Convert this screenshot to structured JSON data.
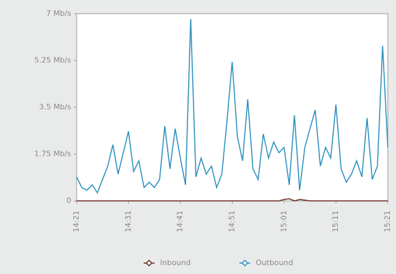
{
  "chart_data": {
    "type": "line",
    "x": [
      861,
      862,
      863,
      864,
      865,
      866,
      867,
      868,
      869,
      870,
      871,
      872,
      873,
      874,
      875,
      876,
      877,
      878,
      879,
      880,
      881,
      882,
      883,
      884,
      885,
      886,
      887,
      888,
      889,
      890,
      891,
      892,
      893,
      894,
      895,
      896,
      897,
      898,
      899,
      900,
      901,
      902,
      903,
      904,
      905,
      906,
      907,
      908,
      909,
      910,
      911,
      912,
      913,
      914,
      915,
      916,
      917,
      918,
      919,
      920,
      921
    ],
    "series": [
      {
        "name": "Inbound",
        "color": "#6b2a1e",
        "values": [
          0,
          0,
          0,
          0,
          0,
          0,
          0,
          0,
          0,
          0,
          0,
          0,
          0,
          0,
          0,
          0,
          0,
          0,
          0,
          0,
          0,
          0,
          0,
          0,
          0,
          0,
          0,
          0,
          0,
          0,
          0,
          0,
          0,
          0,
          0,
          0,
          0,
          0,
          0,
          0,
          0.05,
          0.08,
          0,
          0.05,
          0.03,
          0,
          0,
          0,
          0,
          0,
          0,
          0,
          0,
          0,
          0,
          0,
          0,
          0,
          0,
          0,
          0
        ]
      },
      {
        "name": "Outbound",
        "color": "#2a8fbd",
        "values": [
          0.9,
          0.5,
          0.4,
          0.6,
          0.3,
          0.8,
          1.3,
          2.1,
          1.0,
          1.8,
          2.6,
          1.1,
          1.5,
          0.5,
          0.7,
          0.5,
          0.8,
          2.8,
          1.2,
          2.7,
          1.6,
          0.6,
          6.8,
          0.9,
          1.6,
          1.0,
          1.3,
          0.5,
          1.0,
          3.0,
          5.2,
          2.4,
          1.5,
          3.8,
          1.2,
          0.8,
          2.5,
          1.6,
          2.2,
          1.8,
          2.0,
          0.6,
          3.2,
          0.4,
          2.0,
          2.7,
          3.4,
          1.3,
          2.0,
          1.6,
          3.6,
          1.2,
          0.7,
          1.0,
          1.5,
          0.9,
          3.1,
          0.8,
          1.3,
          5.8,
          2.0
        ]
      }
    ],
    "xlim": [
      861,
      921
    ],
    "xticks": [
      {
        "value": 861,
        "label": "14:21"
      },
      {
        "value": 871,
        "label": "14:31"
      },
      {
        "value": 881,
        "label": "14:41"
      },
      {
        "value": 891,
        "label": "14:51"
      },
      {
        "value": 901,
        "label": "15:01"
      },
      {
        "value": 911,
        "label": "15:11"
      },
      {
        "value": 921,
        "label": "15:21"
      }
    ],
    "ylim": [
      0,
      7
    ],
    "yticks": [
      0,
      {
        "value": 1.75,
        "label": "1.75 Mb/s"
      },
      {
        "value": 3.5,
        "label": "3.5 Mb/s"
      },
      {
        "value": 5.25,
        "label": "5.25 Mb/s"
      },
      {
        "value": 7,
        "label": "7 Mb/s"
      }
    ]
  }
}
